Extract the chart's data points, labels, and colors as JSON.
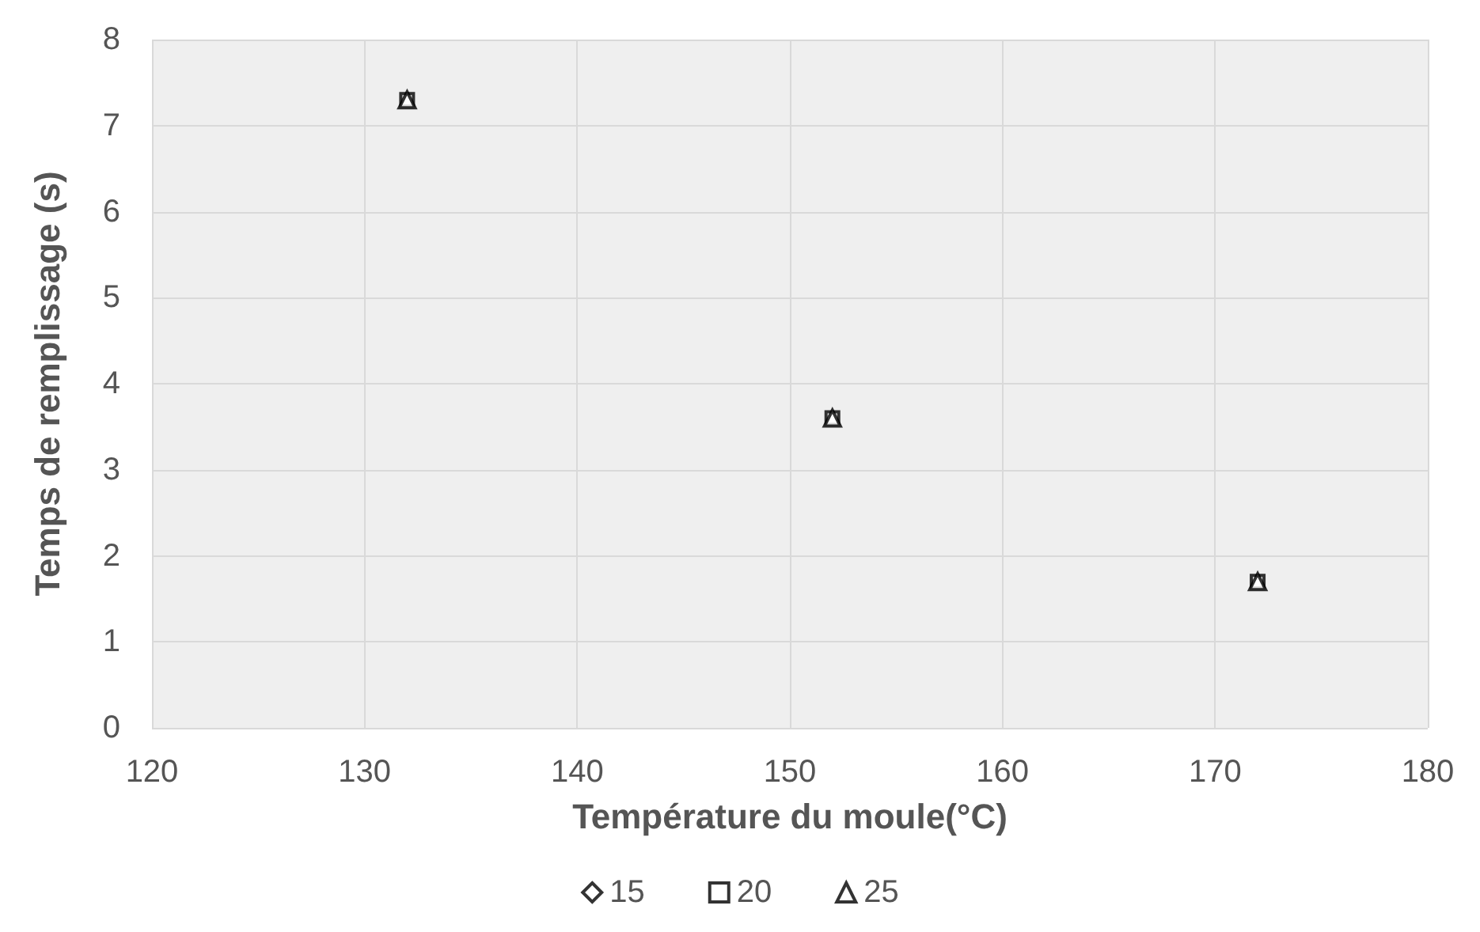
{
  "chart_data": {
    "type": "scatter",
    "xlabel": "Température du moule(°C)",
    "ylabel": "Temps de remplissage (s)",
    "x": [
      132,
      152,
      172
    ],
    "series": [
      {
        "name": "15",
        "color": "#000000",
        "marker": "diamond",
        "values": [
          null,
          null,
          null
        ]
      },
      {
        "name": "20",
        "color": "#000000",
        "marker": "square",
        "values": [
          7.3,
          3.6,
          1.7
        ]
      },
      {
        "name": "25",
        "color": "#000000",
        "marker": "triangle",
        "values": [
          7.3,
          3.6,
          1.7
        ]
      }
    ],
    "xlim": [
      120,
      180
    ],
    "xticks": [
      120,
      130,
      140,
      150,
      160,
      170,
      180
    ],
    "ylim": [
      0,
      8
    ],
    "yticks": [
      0,
      1,
      2,
      3,
      4,
      5,
      6,
      7,
      8
    ],
    "grid": true,
    "legend": "bottom"
  }
}
